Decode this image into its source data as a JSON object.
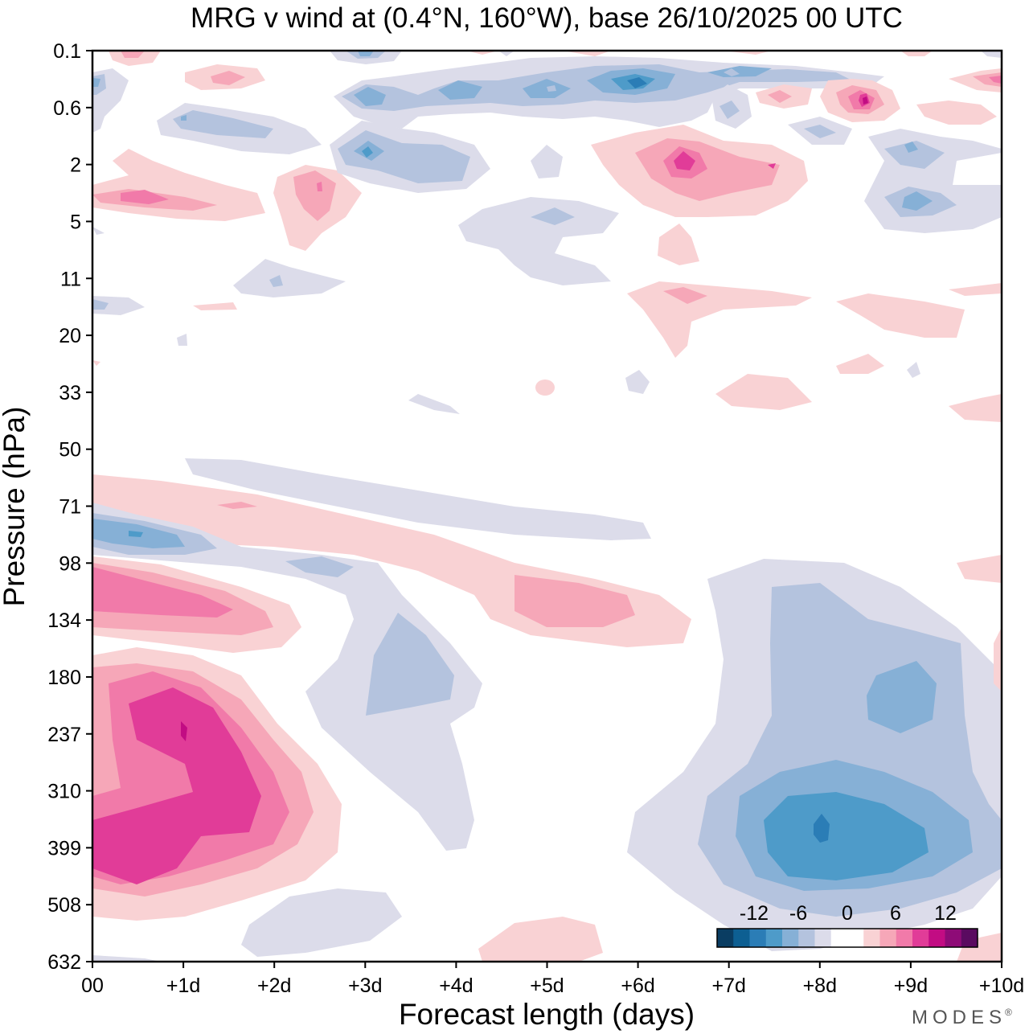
{
  "chart_data": {
    "type": "contour",
    "title": "MRG v wind at (0.4°N, 160°W),  base 26/10/2025  00 UTC",
    "xlabel": "Forecast length (days)",
    "ylabel": "Pressure (hPa)",
    "x_ticks": [
      "00",
      "+1d",
      "+2d",
      "+3d",
      "+4d",
      "+5d",
      "+6d",
      "+7d",
      "+8d",
      "+9d",
      "+10d"
    ],
    "x_range_days": [
      0,
      10
    ],
    "y_ticks": [
      "0.1",
      "0.6",
      "2",
      "5",
      "11",
      "20",
      "33",
      "50",
      "71",
      "98",
      "134",
      "180",
      "237",
      "310",
      "399",
      "508",
      "632"
    ],
    "y_axis": "pressure (hPa), log-like spacing, decreasing upward",
    "colorbar": {
      "labels": [
        "-12",
        "-6",
        "0",
        "6",
        "12"
      ],
      "levels": [
        -15,
        -12,
        -9,
        -6,
        -3,
        -1,
        1,
        3,
        6,
        9,
        12,
        15
      ],
      "colors": [
        "#0a3d62",
        "#0d5f92",
        "#2b7db6",
        "#4e9bc9",
        "#86b0d6",
        "#b4c3de",
        "#dcdcea",
        "#ffffff",
        "#ffffff",
        "#f9d2d4",
        "#f6a7b8",
        "#f17aa9",
        "#e13c98",
        "#c20c83",
        "#8e0b77",
        "#5a0a60"
      ]
    },
    "features": [
      {
        "sign": "positive",
        "peak": 12,
        "location": "00 to +2d, 237-450 hPa"
      },
      {
        "sign": "positive",
        "peak": 9,
        "location": "00 to +1.5d, 98-140 hPa"
      },
      {
        "sign": "positive",
        "peak": 6,
        "location": "+4.5d to +6d, 110-140 hPa"
      },
      {
        "sign": "negative",
        "peak": -12,
        "location": "+7d to +9.2d, 300-480 hPa"
      },
      {
        "sign": "negative",
        "peak": -6,
        "location": "+8.5d to +9.2d, 180-220 hPa"
      },
      {
        "sign": "negative",
        "peak": -6,
        "location": "+3d to +4d, 140-210 hPa"
      },
      {
        "sign": "negative",
        "peak": -6,
        "location": "00 to +1.3d, 75-90 hPa"
      },
      {
        "sign": "positive",
        "peak": 9,
        "location": "+6.5d, 2 hPa"
      },
      {
        "sign": "positive",
        "peak": 9,
        "location": "+8.5d, 0.6 hPa"
      },
      {
        "sign": "negative",
        "peak": -9,
        "location": "+6d, 0.3 hPa"
      }
    ]
  },
  "brand": {
    "name": "MODES",
    "mark": "®"
  }
}
